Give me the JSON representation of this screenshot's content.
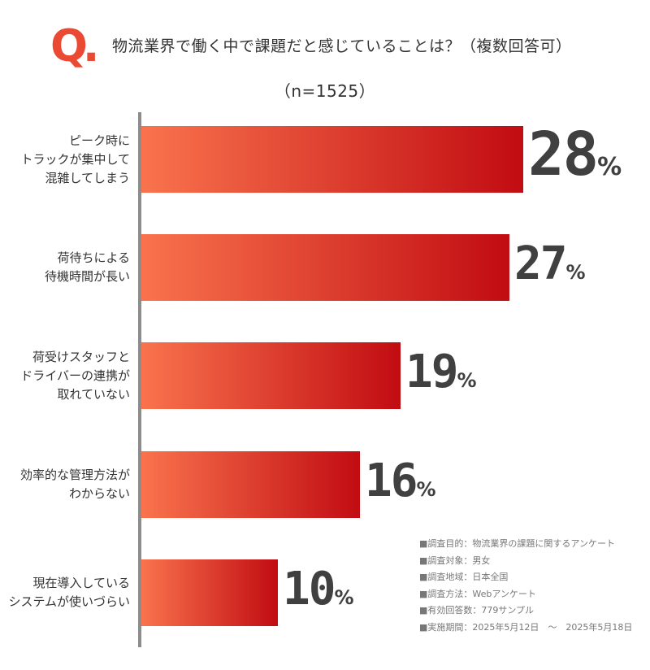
{
  "header": {
    "q_mark": "Q.",
    "question": "物流業界で働く中で課題だと感じていることは？（複数回答可）",
    "sample_size": "（n=1525）"
  },
  "colors": {
    "accent": "#ea4a33",
    "bar_start": "#f9734d",
    "bar_end": "#c10c12",
    "axis": "#8c8c8c"
  },
  "chart_data": {
    "type": "bar",
    "orientation": "horizontal",
    "title": "物流業界で働く中で課題だと感じていることは？（複数回答可）",
    "subtitle": "（n=1525）",
    "categories": [
      [
        "ピーク時に",
        "トラックが集中して",
        "混雑してしまう"
      ],
      [
        "荷待ちによる",
        "待機時間が長い"
      ],
      [
        "荷受けスタッフと",
        "ドライバーの連携が",
        "取れていない"
      ],
      [
        "効率的な管理方法が",
        "わからない"
      ],
      [
        "現在導入している",
        "システムが使いづらい"
      ]
    ],
    "values": [
      28,
      27,
      19,
      16,
      10
    ],
    "value_suffix": "%",
    "xlim": [
      0,
      30
    ],
    "grid": false,
    "legend": "none"
  },
  "notes": [
    "■調査目的：物流業界の課題に関するアンケート",
    "■調査対象：男女",
    "■調査地域：日本全国",
    "■調査方法：Webアンケート",
    "■有効回答数：779サンプル",
    "■実施期間：2025年5月12日　～　2025年5月18日"
  ]
}
